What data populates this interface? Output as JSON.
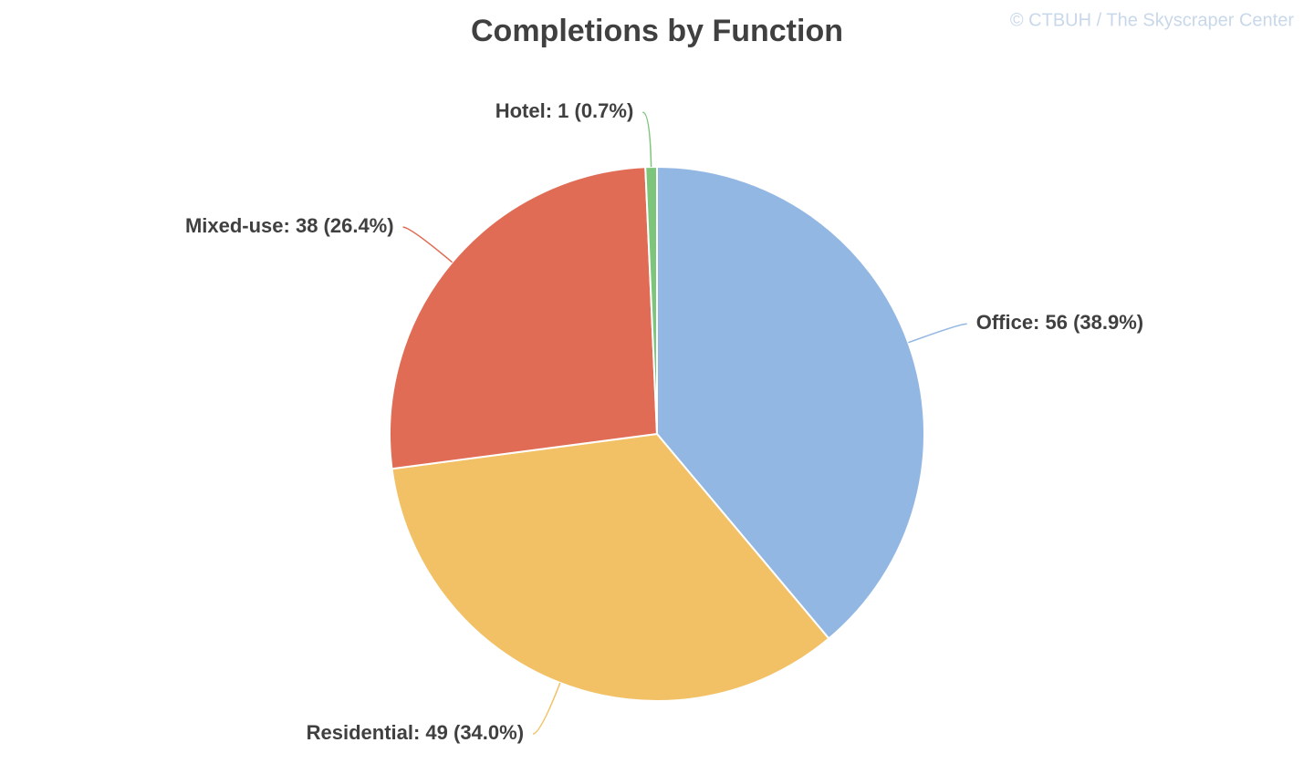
{
  "chart_data": {
    "type": "pie",
    "title": "Completions by Function",
    "credit": "© CTBUH / The Skyscraper Center",
    "categories": [
      "Office",
      "Residential",
      "Mixed-use",
      "Hotel"
    ],
    "values": [
      56,
      49,
      38,
      1
    ],
    "value_labels": [
      "Office: 56 (38.9%)",
      "Residential: 49 (34.0%)",
      "Mixed-use: 38 (26.4%)",
      "Hotel: 1 (0.7%)"
    ],
    "colors": [
      "#93b7e3",
      "#f2c166",
      "#e06c55",
      "#7cc57a"
    ]
  }
}
